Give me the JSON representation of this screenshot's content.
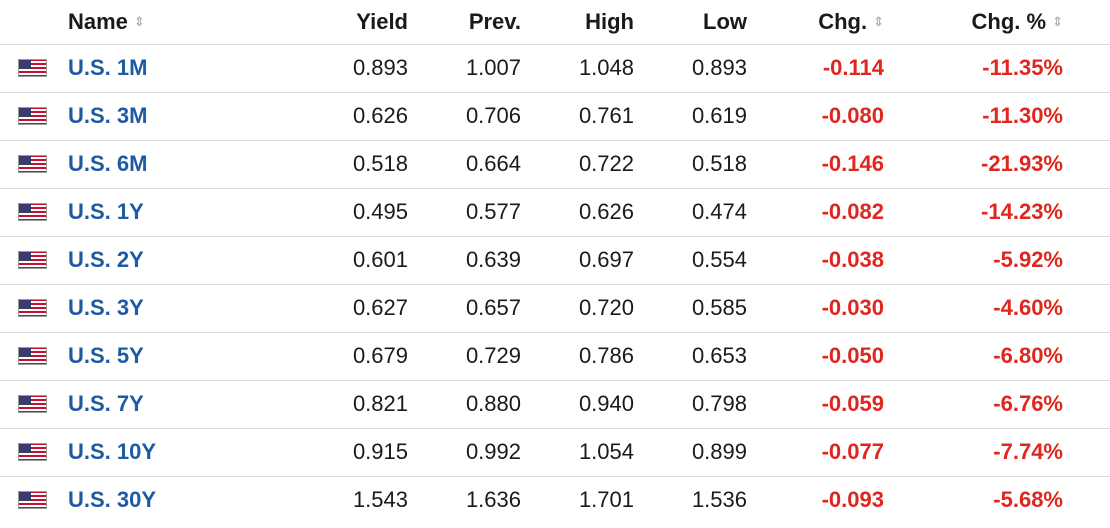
{
  "header": {
    "name_label": "Name",
    "yield_label": "Yield",
    "prev_label": "Prev.",
    "high_label": "High",
    "low_label": "Low",
    "chg_label": "Chg.",
    "chg_pct_label": "Chg. %"
  },
  "colors": {
    "link": "#1f5aa6",
    "negative": "#e0261f",
    "divider": "#d9d9d9"
  },
  "flag_icon": "us-flag-icon",
  "rows": [
    {
      "name": "U.S. 1M",
      "yield": "0.893",
      "prev": "1.007",
      "high": "1.048",
      "low": "0.893",
      "chg": "-0.114",
      "chg_pct": "-11.35%"
    },
    {
      "name": "U.S. 3M",
      "yield": "0.626",
      "prev": "0.706",
      "high": "0.761",
      "low": "0.619",
      "chg": "-0.080",
      "chg_pct": "-11.30%"
    },
    {
      "name": "U.S. 6M",
      "yield": "0.518",
      "prev": "0.664",
      "high": "0.722",
      "low": "0.518",
      "chg": "-0.146",
      "chg_pct": "-21.93%"
    },
    {
      "name": "U.S. 1Y",
      "yield": "0.495",
      "prev": "0.577",
      "high": "0.626",
      "low": "0.474",
      "chg": "-0.082",
      "chg_pct": "-14.23%"
    },
    {
      "name": "U.S. 2Y",
      "yield": "0.601",
      "prev": "0.639",
      "high": "0.697",
      "low": "0.554",
      "chg": "-0.038",
      "chg_pct": "-5.92%"
    },
    {
      "name": "U.S. 3Y",
      "yield": "0.627",
      "prev": "0.657",
      "high": "0.720",
      "low": "0.585",
      "chg": "-0.030",
      "chg_pct": "-4.60%"
    },
    {
      "name": "U.S. 5Y",
      "yield": "0.679",
      "prev": "0.729",
      "high": "0.786",
      "low": "0.653",
      "chg": "-0.050",
      "chg_pct": "-6.80%"
    },
    {
      "name": "U.S. 7Y",
      "yield": "0.821",
      "prev": "0.880",
      "high": "0.940",
      "low": "0.798",
      "chg": "-0.059",
      "chg_pct": "-6.76%"
    },
    {
      "name": "U.S. 10Y",
      "yield": "0.915",
      "prev": "0.992",
      "high": "1.054",
      "low": "0.899",
      "chg": "-0.077",
      "chg_pct": "-7.74%"
    },
    {
      "name": "U.S. 30Y",
      "yield": "1.543",
      "prev": "1.636",
      "high": "1.701",
      "low": "1.536",
      "chg": "-0.093",
      "chg_pct": "-5.68%"
    }
  ]
}
